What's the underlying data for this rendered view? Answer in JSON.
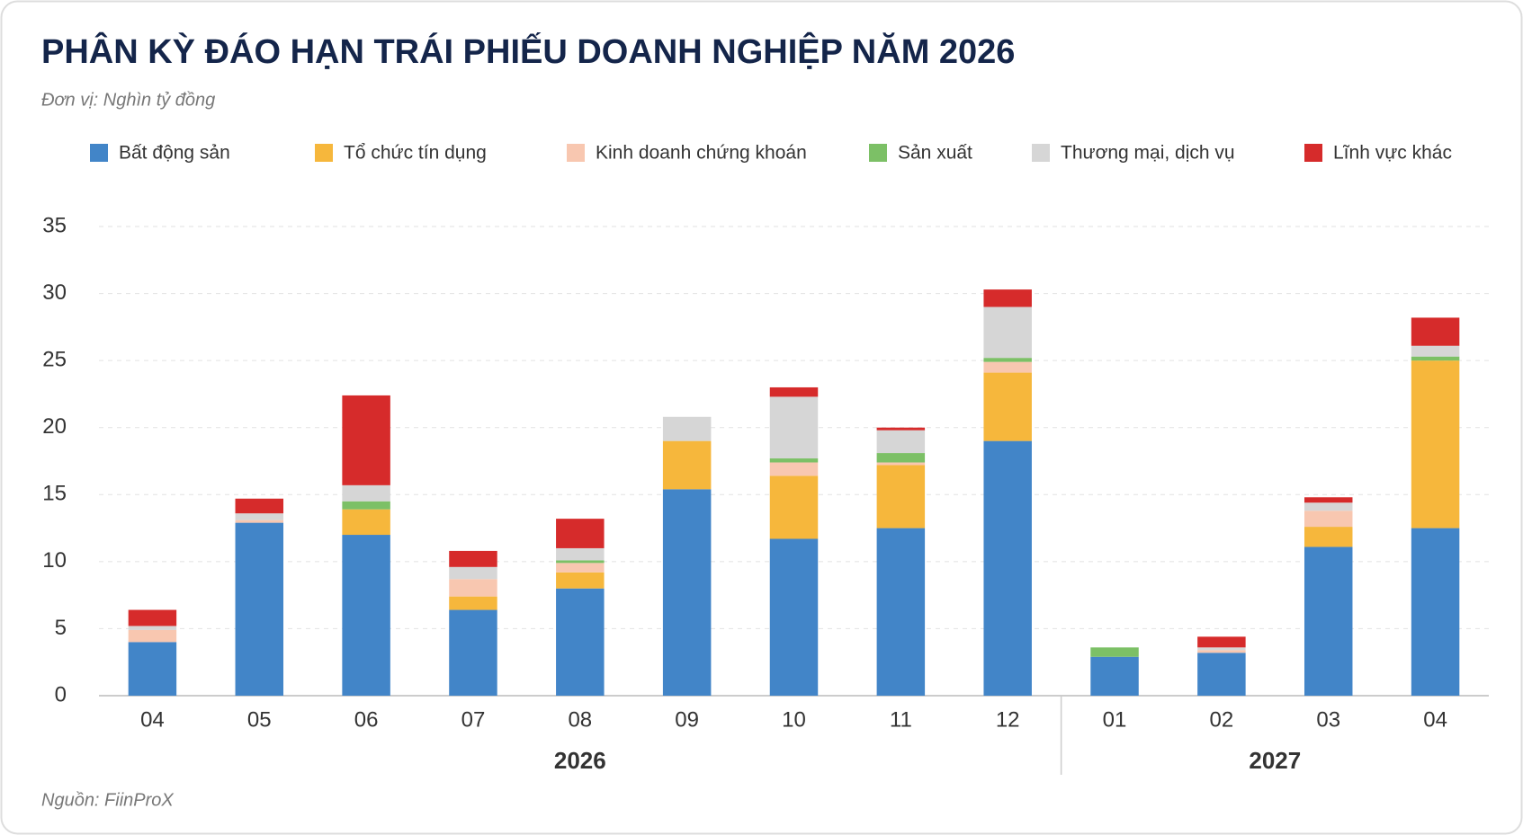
{
  "chart_data": {
    "type": "stacked_bar",
    "title": "PHÂN KỲ ĐÁO HẠN TRÁI PHIẾU DOANH NGHIỆP NĂM 2026",
    "subtitle": "Đơn vị: Nghìn tỷ đồng",
    "source": "Nguồn: FiinProX",
    "groups": [
      {
        "label": "2026",
        "categories": [
          "04",
          "05",
          "06",
          "07",
          "08",
          "09",
          "10",
          "11",
          "12"
        ]
      },
      {
        "label": "2027",
        "categories": [
          "01",
          "02",
          "03",
          "04"
        ]
      }
    ],
    "series": [
      {
        "name": "Bất động sản",
        "color": "#4285c8",
        "values": [
          4.0,
          12.9,
          12.0,
          6.4,
          8.0,
          15.4,
          11.7,
          12.5,
          19.0,
          2.9,
          3.2,
          11.1,
          12.5
        ]
      },
      {
        "name": "Tổ chức tín dụng",
        "color": "#f6b73c",
        "values": [
          0,
          0,
          1.9,
          1.0,
          1.2,
          3.6,
          4.7,
          4.7,
          5.1,
          0,
          0,
          1.5,
          12.5
        ]
      },
      {
        "name": "Kinh doanh chứng khoán",
        "color": "#f8c7b0",
        "values": [
          0.9,
          0.2,
          0,
          1.3,
          0.7,
          0,
          1.0,
          0.2,
          0.8,
          0,
          0.2,
          1.2,
          0
        ]
      },
      {
        "name": "Sản xuất",
        "color": "#7cc066",
        "values": [
          0,
          0,
          0.6,
          0,
          0.2,
          0,
          0.3,
          0.7,
          0.3,
          0.7,
          0,
          0,
          0.3
        ]
      },
      {
        "name": "Thương mại, dịch vụ",
        "color": "#d6d6d6",
        "values": [
          0.3,
          0.5,
          1.2,
          0.9,
          0.9,
          1.8,
          4.6,
          1.7,
          3.8,
          0,
          0.2,
          0.6,
          0.8
        ]
      },
      {
        "name": "Lĩnh vực khác",
        "color": "#d62b2b",
        "values": [
          1.2,
          1.1,
          6.7,
          1.2,
          2.2,
          0,
          0.7,
          0.2,
          1.3,
          0,
          0.8,
          0.4,
          2.1
        ]
      }
    ],
    "ylim": [
      0,
      35
    ],
    "yticks": [
      0,
      5,
      10,
      15,
      20,
      25,
      30,
      35
    ],
    "grid": true
  }
}
